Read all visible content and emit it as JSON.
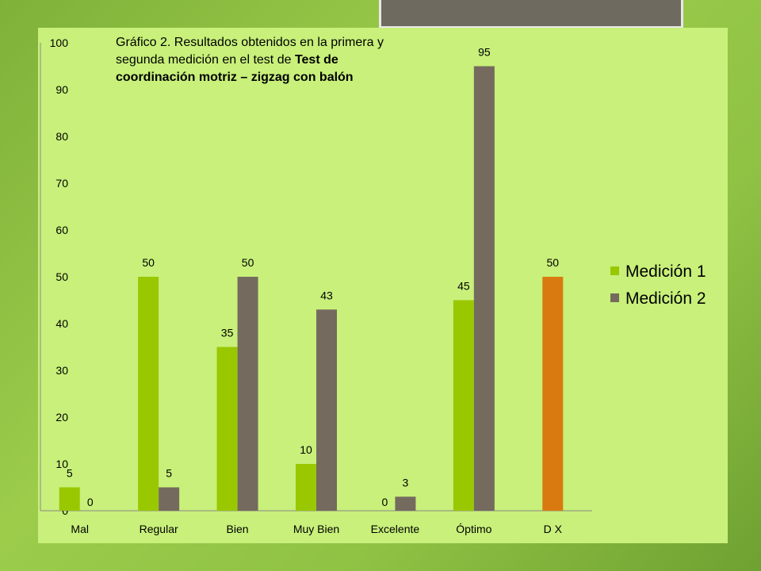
{
  "chart_data": {
    "type": "bar",
    "title_lines": [
      [
        {
          "text": "Gráfico 2. Resultados obtenidos en la primera y",
          "bold": false
        }
      ],
      [
        {
          "text": "segunda medición en el test de ",
          "bold": false
        },
        {
          "text": "Test de",
          "bold": true
        }
      ],
      [
        {
          "text": "coordinación motriz – zigzag con balón",
          "bold": true
        }
      ]
    ],
    "categories": [
      "Mal",
      "Regular",
      "Bien",
      "Muy Bien",
      "Excelente",
      "Óptimo",
      "D X"
    ],
    "series": [
      {
        "name": "Medición 1",
        "color": "#99c800",
        "values": [
          5,
          50,
          35,
          10,
          0,
          45,
          null
        ]
      },
      {
        "name": "Medición 2",
        "color": "#756a5e",
        "values": [
          0,
          5,
          50,
          43,
          3,
          95,
          null
        ]
      }
    ],
    "extra_bar": {
      "category": "D X",
      "value": 50,
      "color": "#d97a10",
      "label": "50"
    },
    "data_labels": {
      "Medición 1": [
        "5",
        "50",
        "35",
        "10",
        "0",
        "45",
        ""
      ],
      "Medición 2": [
        "0",
        "5",
        "50",
        "43",
        "3",
        "95",
        ""
      ]
    },
    "yticks": [
      0,
      10,
      20,
      30,
      40,
      50,
      60,
      70,
      80,
      90,
      100
    ],
    "ylim": [
      0,
      100
    ],
    "grid": false,
    "legend_position": "right"
  }
}
